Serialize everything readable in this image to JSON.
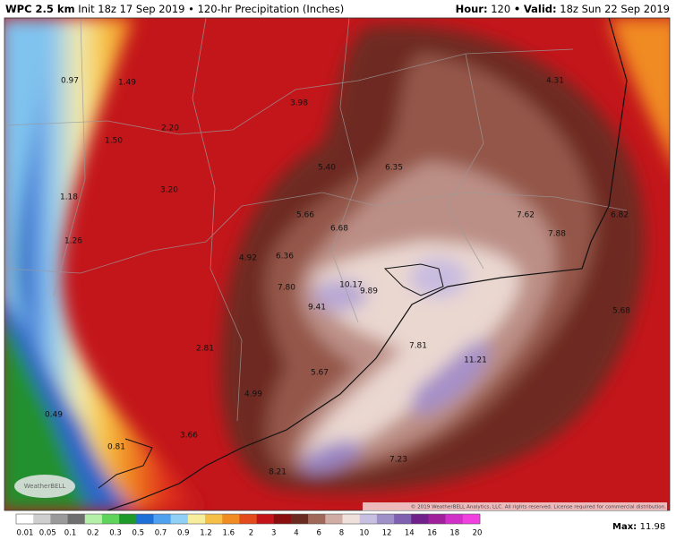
{
  "header": {
    "model": "WPC 2.5 km",
    "init": "Init 18z 17 Sep 2019 • 120-hr Precipitation (Inches)",
    "hour_label": "Hour:",
    "hour": "120",
    "sep": "•",
    "valid_label": "Valid:",
    "valid": "18z Sun 22 Sep 2019"
  },
  "map": {
    "labels": [
      "0.97",
      "1.49",
      "1.50",
      "2.20",
      "3.98",
      "4.31",
      "5.40",
      "6.35",
      "1.18",
      "3.20",
      "5.66",
      "6.68",
      "7.62",
      "6.82",
      "1.26",
      "7.88",
      "4.92",
      "6.36",
      "10.17",
      "9.89",
      "7.80",
      "9.41",
      "5.68",
      "2.81",
      "7.81",
      "11.21",
      "5.67",
      "4.99",
      "0.49",
      "3.66",
      "0.81",
      "7.23",
      "8.21"
    ],
    "logo": "WeatherBELL",
    "copyright": "© 2019 WeatherBELL Analytics, LLC. All rights reserved. License required for commercial distribution."
  },
  "colorbar": {
    "labels": [
      0.01,
      0.05,
      0.1,
      0.2,
      0.3,
      0.5,
      0.7,
      0.9,
      1.2,
      1.6,
      2,
      3,
      4,
      6,
      8,
      10,
      12,
      14,
      16,
      18,
      20
    ]
  },
  "max": {
    "label": "Max:",
    "value": "11.98"
  }
}
